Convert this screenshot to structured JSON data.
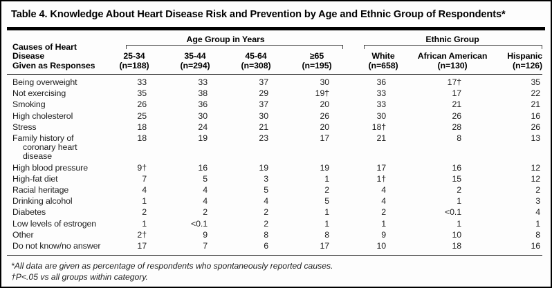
{
  "title": "Table 4. Knowledge About Heart Disease Risk and Prevention by Age and Ethnic Group of Respondents*",
  "table": {
    "stub_head_line1": "Causes of Heart Disease",
    "stub_head_line2": "Given as Responses",
    "col_groups": [
      {
        "label": "Age Group in Years"
      },
      {
        "label": "Ethnic Group"
      }
    ],
    "columns": [
      {
        "label": "25-34",
        "n": "(n=188)"
      },
      {
        "label": "35-44",
        "n": "(n=294)"
      },
      {
        "label": "45-64",
        "n": "(n=308)"
      },
      {
        "label": "≥65",
        "n": "(n=195)"
      },
      {
        "label": "White",
        "n": "(n=658)"
      },
      {
        "label": "African American",
        "n": "(n=130)"
      },
      {
        "label": "Hispanic",
        "n": "(n=126)"
      }
    ],
    "rows": [
      {
        "label": "Being overweight",
        "label_line2": "",
        "values": [
          "33",
          "33",
          "37",
          "30",
          "36",
          "17†",
          "35"
        ]
      },
      {
        "label": "Not exercising",
        "label_line2": "",
        "values": [
          "35",
          "38",
          "29",
          "19†",
          "33",
          "17",
          "22"
        ]
      },
      {
        "label": "Smoking",
        "label_line2": "",
        "values": [
          "26",
          "36",
          "37",
          "20",
          "33",
          "21",
          "21"
        ]
      },
      {
        "label": "High cholesterol",
        "label_line2": "",
        "values": [
          "25",
          "30",
          "30",
          "26",
          "30",
          "26",
          "16"
        ]
      },
      {
        "label": "Stress",
        "label_line2": "",
        "values": [
          "18",
          "24",
          "21",
          "20",
          "18†",
          "28",
          "26"
        ]
      },
      {
        "label": "Family history of",
        "label_line2": "coronary heart disease",
        "values": [
          "18",
          "19",
          "23",
          "17",
          "21",
          "8",
          "13"
        ]
      },
      {
        "label": "High blood pressure",
        "label_line2": "",
        "values": [
          "9†",
          "16",
          "19",
          "19",
          "17",
          "16",
          "12"
        ]
      },
      {
        "label": "High-fat diet",
        "label_line2": "",
        "values": [
          "7",
          "5",
          "3",
          "1",
          "1†",
          "15",
          "12"
        ]
      },
      {
        "label": "Racial heritage",
        "label_line2": "",
        "values": [
          "4",
          "4",
          "5",
          "2",
          "4",
          "2",
          "2"
        ]
      },
      {
        "label": "Drinking alcohol",
        "label_line2": "",
        "values": [
          "1",
          "4",
          "4",
          "5",
          "4",
          "1",
          "3"
        ]
      },
      {
        "label": "Diabetes",
        "label_line2": "",
        "values": [
          "2",
          "2",
          "2",
          "1",
          "2",
          "<0.1",
          "4"
        ]
      },
      {
        "label": "Low levels of estrogen",
        "label_line2": "",
        "values": [
          "1",
          "<0.1",
          "2",
          "1",
          "1",
          "1",
          "1"
        ]
      },
      {
        "label": "Other",
        "label_line2": "",
        "values": [
          "2†",
          "9",
          "8",
          "8",
          "9",
          "10",
          "8"
        ]
      },
      {
        "label": "Do not know/no answer",
        "label_line2": "",
        "values": [
          "17",
          "7",
          "6",
          "17",
          "10",
          "18",
          "16"
        ]
      }
    ]
  },
  "footnotes": [
    "*All data are given as percentage of respondents who spontaneously reported causes.",
    "†P<.05 vs all groups within category."
  ]
}
